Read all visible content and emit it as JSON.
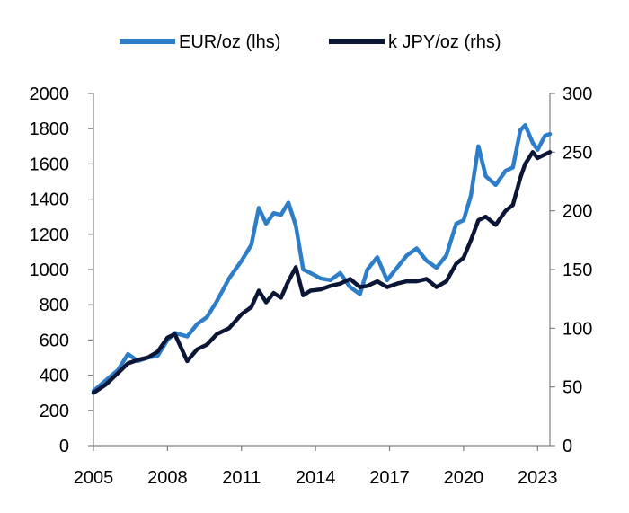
{
  "chart_data": {
    "type": "line",
    "legend_position": "top",
    "grid": false,
    "x_axis": {
      "type": "date",
      "range": [
        "2005-01-01",
        "2023-06-30"
      ],
      "tick_values": [
        2005,
        2008,
        2011,
        2014,
        2017,
        2020,
        2023
      ],
      "tick_labels": [
        "2005",
        "2008",
        "2011",
        "2014",
        "2017",
        "2020",
        "2023"
      ]
    },
    "y_left": {
      "range": [
        0,
        2000
      ],
      "tick_values": [
        0,
        200,
        400,
        600,
        800,
        1000,
        1200,
        1400,
        1600,
        1800,
        2000
      ],
      "tick_labels": [
        "0",
        "200",
        "400",
        "600",
        "800",
        "1000",
        "1200",
        "1400",
        "1600",
        "1800",
        "2000"
      ]
    },
    "y_right": {
      "range": [
        0,
        300
      ],
      "tick_values": [
        0,
        50,
        100,
        150,
        200,
        250,
        300
      ],
      "tick_labels": [
        "0",
        "50",
        "100",
        "150",
        "200",
        "250",
        "300"
      ]
    },
    "series": [
      {
        "name": "EUR/oz (lhs)",
        "axis": "left",
        "color": "#2E7DC9",
        "x": [
          2005.0,
          2005.5,
          2006.0,
          2006.4,
          2006.8,
          2007.2,
          2007.6,
          2008.0,
          2008.3,
          2008.8,
          2009.2,
          2009.6,
          2010.0,
          2010.5,
          2011.0,
          2011.4,
          2011.7,
          2012.0,
          2012.3,
          2012.6,
          2012.9,
          2013.2,
          2013.5,
          2013.8,
          2014.2,
          2014.6,
          2015.0,
          2015.4,
          2015.8,
          2016.1,
          2016.5,
          2016.9,
          2017.3,
          2017.7,
          2018.1,
          2018.5,
          2018.9,
          2019.3,
          2019.7,
          2020.0,
          2020.3,
          2020.6,
          2020.9,
          2021.3,
          2021.7,
          2022.0,
          2022.3,
          2022.5,
          2022.8,
          2023.0,
          2023.3,
          2023.5
        ],
        "y": [
          310,
          370,
          430,
          520,
          480,
          500,
          510,
          600,
          640,
          620,
          690,
          730,
          820,
          950,
          1050,
          1140,
          1350,
          1260,
          1320,
          1310,
          1380,
          1250,
          1000,
          980,
          950,
          940,
          980,
          900,
          860,
          1000,
          1070,
          940,
          1010,
          1080,
          1120,
          1050,
          1010,
          1080,
          1260,
          1280,
          1420,
          1700,
          1530,
          1480,
          1560,
          1580,
          1790,
          1820,
          1720,
          1680,
          1760,
          1770
        ]
      },
      {
        "name": "k JPY/oz (rhs)",
        "axis": "right",
        "color": "#0B1636",
        "x": [
          2005.0,
          2005.5,
          2006.0,
          2006.4,
          2006.8,
          2007.2,
          2007.6,
          2008.0,
          2008.3,
          2008.8,
          2009.2,
          2009.6,
          2010.0,
          2010.5,
          2011.0,
          2011.4,
          2011.7,
          2012.0,
          2012.3,
          2012.6,
          2012.9,
          2013.2,
          2013.5,
          2013.8,
          2014.2,
          2014.6,
          2015.0,
          2015.4,
          2015.8,
          2016.1,
          2016.5,
          2016.9,
          2017.3,
          2017.7,
          2018.1,
          2018.5,
          2018.9,
          2019.3,
          2019.7,
          2020.0,
          2020.3,
          2020.6,
          2020.9,
          2021.3,
          2021.7,
          2022.0,
          2022.3,
          2022.5,
          2022.8,
          2023.0,
          2023.3,
          2023.5
        ],
        "y": [
          45,
          52,
          62,
          70,
          73,
          75,
          80,
          92,
          95,
          72,
          82,
          86,
          95,
          100,
          112,
          118,
          132,
          122,
          130,
          126,
          140,
          152,
          128,
          132,
          133,
          136,
          138,
          142,
          135,
          136,
          140,
          135,
          138,
          140,
          140,
          142,
          135,
          140,
          155,
          160,
          175,
          192,
          195,
          188,
          200,
          205,
          228,
          240,
          250,
          245,
          248,
          250
        ]
      }
    ]
  }
}
